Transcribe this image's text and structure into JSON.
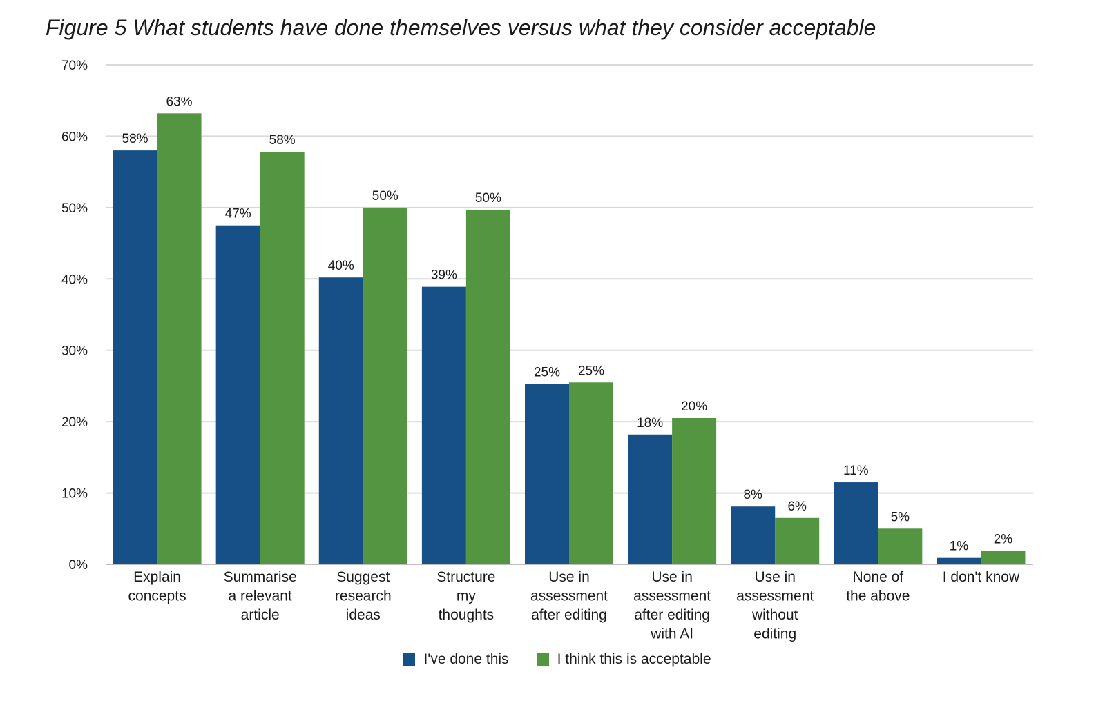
{
  "chart_data": {
    "type": "bar",
    "title": "Figure 5 What students have done themselves versus what they consider acceptable",
    "xlabel": "",
    "ylabel": "",
    "ylim": [
      0,
      70
    ],
    "y_ticks": [
      "0%",
      "10%",
      "20%",
      "30%",
      "40%",
      "50%",
      "60%",
      "70%"
    ],
    "y_tick_values": [
      0,
      10,
      20,
      30,
      40,
      50,
      60,
      70
    ],
    "categories": [
      [
        "Explain",
        "concepts"
      ],
      [
        "Summarise",
        "a relevant",
        "article"
      ],
      [
        "Suggest",
        "research",
        "ideas"
      ],
      [
        "Structure",
        "my",
        "thoughts"
      ],
      [
        "Use in",
        "assessment",
        "after editing"
      ],
      [
        "Use in",
        "assessment",
        "after editing",
        "with AI"
      ],
      [
        "Use in",
        "assessment",
        "without",
        "editing"
      ],
      [
        "None of",
        "the above"
      ],
      [
        "I don't know"
      ]
    ],
    "series": [
      {
        "name": "I've done this",
        "color": "#174f87",
        "values": [
          58,
          47.5,
          40.2,
          38.9,
          25.3,
          18.2,
          8.1,
          11.5,
          0.9
        ],
        "labels": [
          "58%",
          "47%",
          "40%",
          "39%",
          "25%",
          "18%",
          "8%",
          "11%",
          "1%"
        ]
      },
      {
        "name": "I think this is acceptable",
        "color": "#549542",
        "values": [
          63.2,
          57.8,
          50,
          49.7,
          25.5,
          20.5,
          6.5,
          5,
          1.9
        ],
        "labels": [
          "63%",
          "58%",
          "50%",
          "50%",
          "25%",
          "20%",
          "6%",
          "5%",
          "2%"
        ]
      }
    ],
    "grid": true,
    "legend_position": "bottom-center"
  }
}
